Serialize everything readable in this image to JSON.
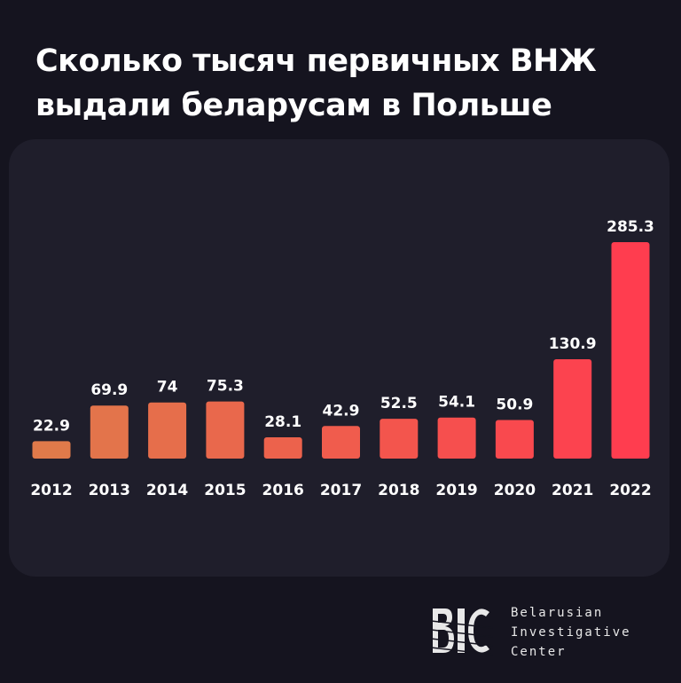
{
  "title_line1": "Сколько тысяч первичных ВНЖ",
  "title_line2": "выдали беларусам в Польше",
  "chart_data": {
    "type": "bar",
    "title": "Сколько тысяч первичных ВНЖ выдали беларусам в Польше",
    "xlabel": "",
    "ylabel": "",
    "categories": [
      "2012",
      "2013",
      "2014",
      "2015",
      "2016",
      "2017",
      "2018",
      "2019",
      "2020",
      "2021",
      "2022"
    ],
    "values": [
      22.9,
      69.9,
      74,
      75.3,
      28.1,
      42.9,
      52.5,
      54.1,
      50.9,
      130.9,
      285.3
    ],
    "value_labels": [
      "22.9",
      "69.9",
      "74",
      "75.3",
      "28.1",
      "42.9",
      "52.5",
      "54.1",
      "50.9",
      "130.9",
      "285.3"
    ],
    "ylim": [
      0,
      285.3
    ],
    "grid": false,
    "legend": "none",
    "bar_color_start": "#e07a4a",
    "bar_color_end": "#ff3d4f"
  },
  "logo": {
    "line1": "Belarusian",
    "line2": "Investigative",
    "line3": "Center"
  },
  "colors": {
    "background": "#15141f",
    "panel": "#1f1e2b",
    "text": "#ffffff"
  }
}
